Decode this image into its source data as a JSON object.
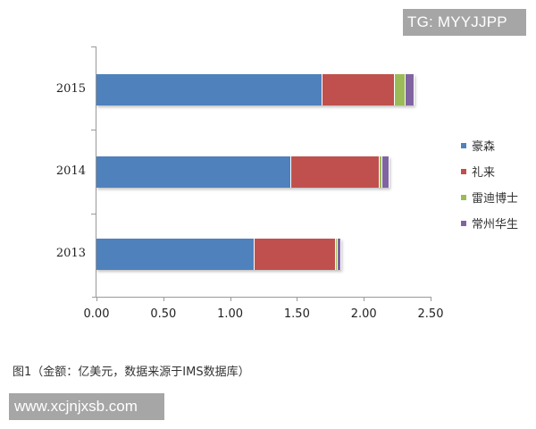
{
  "watermarks": {
    "top": "TG: MYYJJPP",
    "bottom": "www.xcjnjxsb.com"
  },
  "caption": "图1（金额：亿美元，数据来源于IMS数据库）",
  "colors": {
    "haosen": "#4f81bd",
    "lilai": "#c0504d",
    "leidi": "#9bbb59",
    "changzhou": "#8064a2"
  },
  "legend": [
    {
      "label": "豪森",
      "color": "#4f81bd"
    },
    {
      "label": "礼来",
      "color": "#c0504d"
    },
    {
      "label": "雷迪博士",
      "color": "#9bbb59"
    },
    {
      "label": "常州华生",
      "color": "#8064a2"
    }
  ],
  "x_ticks": [
    "0.00",
    "0.50",
    "1.00",
    "1.50",
    "2.00",
    "2.50"
  ],
  "y_labels": [
    "2015",
    "2014",
    "2013"
  ],
  "chart_data": {
    "type": "bar",
    "orientation": "horizontal",
    "stacked": true,
    "title": "",
    "xlabel": "",
    "ylabel": "",
    "categories": [
      "2013",
      "2014",
      "2015"
    ],
    "series": [
      {
        "name": "豪森",
        "color": "#4f81bd",
        "values": [
          1.18,
          1.46,
          1.69
        ]
      },
      {
        "name": "礼来",
        "color": "#c0504d",
        "values": [
          0.61,
          0.66,
          0.54
        ]
      },
      {
        "name": "雷迪博士",
        "color": "#9bbb59",
        "values": [
          0.01,
          0.02,
          0.08
        ]
      },
      {
        "name": "常州华生",
        "color": "#8064a2",
        "values": [
          0.03,
          0.05,
          0.07
        ]
      }
    ],
    "xlim": [
      0,
      2.5
    ],
    "x_tick_labels": [
      "0.00",
      "0.50",
      "1.00",
      "1.50",
      "2.00",
      "2.50"
    ],
    "grid": false,
    "legend_position": "right",
    "caption": "图1（金额：亿美元，数据来源于IMS数据库）",
    "unit": "亿美元",
    "source": "IMS数据库"
  }
}
